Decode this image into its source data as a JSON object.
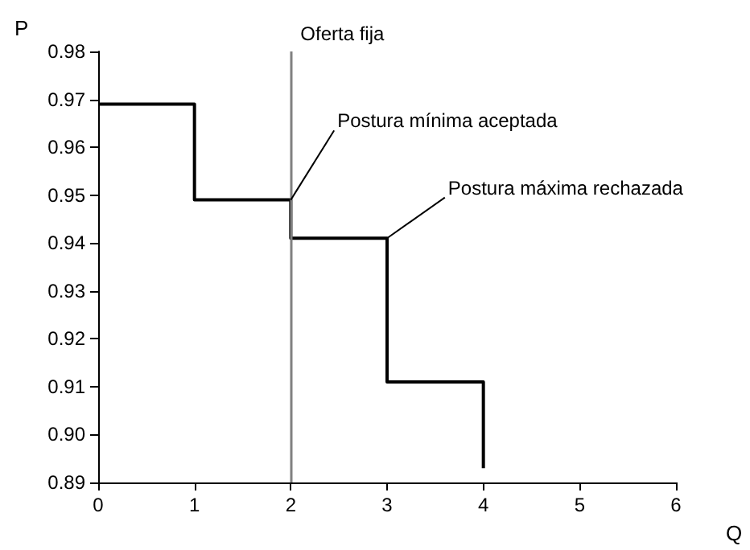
{
  "chart_data": {
    "type": "step",
    "xlabel": "Q",
    "ylabel": "P",
    "x": [
      0,
      1,
      2,
      3,
      4
    ],
    "series": [
      {
        "color": "#000000",
        "values": [
          0.969,
          0.949,
          0.941,
          0.911,
          0.893
        ]
      }
    ],
    "xlim": [
      0,
      6
    ],
    "xticks": [
      0,
      1,
      2,
      3,
      4,
      5,
      6
    ],
    "ylim": [
      0.89,
      0.98
    ],
    "yticks": [
      {
        "value": 0.89,
        "label": "0.89"
      },
      {
        "value": 0.9,
        "label": "0.90"
      },
      {
        "value": 0.91,
        "label": "0.91"
      },
      {
        "value": 0.92,
        "label": "0.92"
      },
      {
        "value": 0.93,
        "label": "0.93"
      },
      {
        "value": 0.94,
        "label": "0.94"
      },
      {
        "value": 0.95,
        "label": "0.95"
      },
      {
        "value": 0.96,
        "label": "0.96"
      },
      {
        "value": 0.97,
        "label": "0.97"
      },
      {
        "value": 0.98,
        "label": "0.98"
      }
    ],
    "ref_lines": [
      {
        "axis": "x",
        "value": 2,
        "label": "Oferta fija",
        "color": "#808080"
      }
    ],
    "annotations": [
      {
        "text": "Postura mínima aceptada",
        "x": 2,
        "y": 0.949
      },
      {
        "text": "Postura máxima rechazada",
        "x": 3,
        "y": 0.941
      }
    ],
    "grid": false,
    "marker": "none",
    "line_style": "solid"
  }
}
